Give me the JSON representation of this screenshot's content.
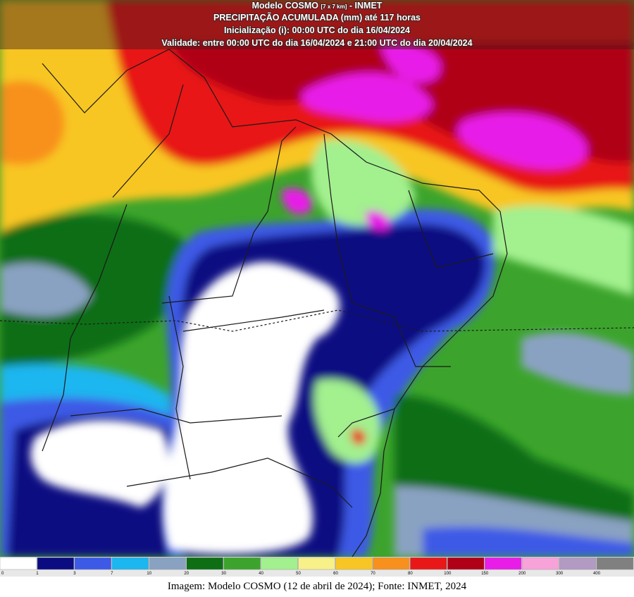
{
  "header": {
    "model": "Modelo COSMO",
    "resolution": "[7 x 7 km]",
    "source": "- INMET",
    "title": "PRECIPITAÇÃO ACUMULADA (mm) até 117 horas",
    "init": "Inicialização (i): 00:00 UTC do dia 16/04/2024",
    "validity": "Validade: entre 00:00 UTC do dia 16/04/2024 e 21:00 UTC do dia 20/04/2024"
  },
  "legend": {
    "labels": [
      "0",
      "1",
      "3",
      "7",
      "10",
      "20",
      "30",
      "40",
      "50",
      "60",
      "70",
      "80",
      "100",
      "150",
      "200",
      "300",
      "400"
    ],
    "colors": [
      "#ffffff",
      "#0c0c82",
      "#3c5ae6",
      "#1cb6f0",
      "#8aa2c2",
      "#0e6e14",
      "#3ca42c",
      "#a2f08e",
      "#f8f088",
      "#f8c624",
      "#f8901e",
      "#e81818",
      "#b00018",
      "#e81ee8",
      "#f8a2da",
      "#b29ac2",
      "#808080"
    ]
  },
  "caption": "Imagem: Modelo COSMO (12 de abril de 2024); Fonte: INMET, 2024"
}
